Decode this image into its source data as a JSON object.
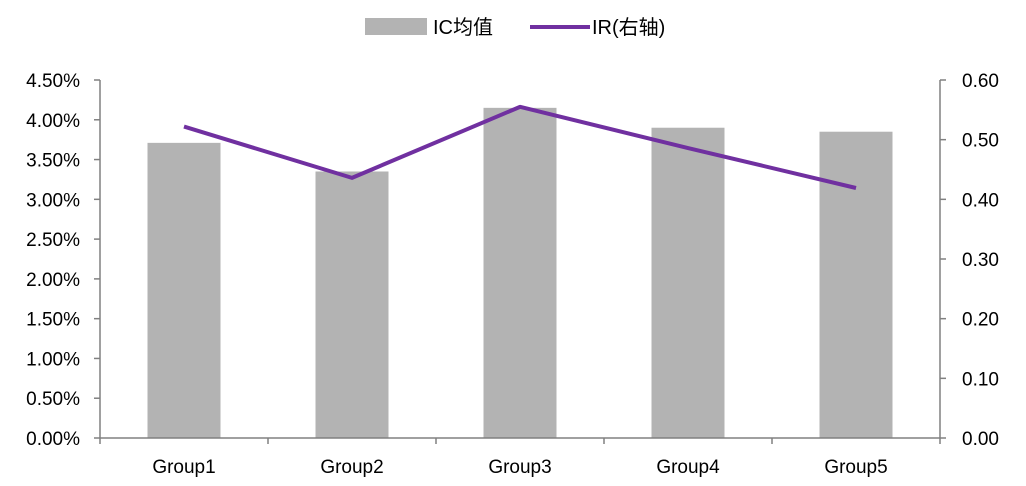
{
  "chart_data": {
    "type": "bar",
    "categories": [
      "Group1",
      "Group2",
      "Group3",
      "Group4",
      "Group5"
    ],
    "series": [
      {
        "name": "IC均值",
        "type": "bar",
        "axis": "left",
        "values": [
          0.0371,
          0.0335,
          0.0415,
          0.039,
          0.0385
        ]
      },
      {
        "name": "IR(右轴)",
        "type": "line",
        "axis": "right",
        "values": [
          0.522,
          0.436,
          0.555,
          0.486,
          0.419
        ]
      }
    ],
    "y_left": {
      "ylim": [
        0,
        0.045
      ],
      "ticks": [
        0,
        0.005,
        0.01,
        0.015,
        0.02,
        0.025,
        0.03,
        0.035,
        0.04,
        0.045
      ],
      "tick_labels": [
        "0.00%",
        "0.50%",
        "1.00%",
        "1.50%",
        "2.00%",
        "2.50%",
        "3.00%",
        "3.50%",
        "4.00%",
        "4.50%"
      ]
    },
    "y_right": {
      "ylim": [
        0,
        0.6
      ],
      "ticks": [
        0,
        0.1,
        0.2,
        0.3,
        0.4,
        0.5,
        0.6
      ],
      "tick_labels": [
        "0.00",
        "0.10",
        "0.20",
        "0.30",
        "0.40",
        "0.50",
        "0.60"
      ]
    },
    "legend_position": "top-center",
    "colors": {
      "bar": "#b3b3b3",
      "line": "#7030a0",
      "axis": "#808080"
    }
  }
}
